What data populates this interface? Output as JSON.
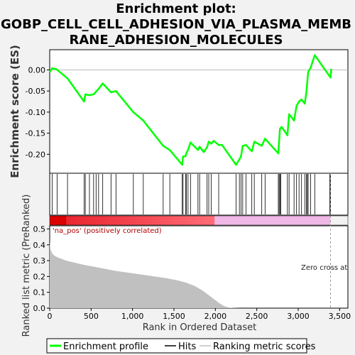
{
  "chart_data": {
    "type": "line",
    "title": [
      "Enrichment plot:",
      "GOBP_CELL_CELL_ADHESION_VIA_PLASMA_MEMB",
      "RANE_ADHESION_MOLECULES"
    ],
    "top_panel": {
      "ylabel": "Enrichment score (ES)",
      "ylim": [
        -0.245,
        0.048
      ],
      "yticks": [
        0.0,
        -0.05,
        -0.1,
        -0.15,
        -0.2
      ],
      "ytick_labels": [
        "0.00",
        "-0.05",
        "-0.10",
        "-0.15",
        "-0.20"
      ],
      "series": [
        {
          "name": "Enrichment profile",
          "color": "#00ff00",
          "x": [
            0,
            30,
            80,
            215,
            415,
            430,
            480,
            530,
            590,
            640,
            740,
            800,
            1010,
            1130,
            1370,
            1450,
            1600,
            1610,
            1640,
            1650,
            1670,
            1700,
            1790,
            1810,
            1860,
            1900,
            1920,
            1950,
            1980,
            2040,
            2080,
            2250,
            2290,
            2310,
            2330,
            2370,
            2440,
            2470,
            2560,
            2600,
            2760,
            2780,
            2800,
            2870,
            2890,
            2950,
            2980,
            3010,
            3040,
            3080,
            3100,
            3120,
            3150,
            3200,
            3390,
            3400
          ],
          "y": [
            -0.005,
            0.004,
            0.002,
            -0.02,
            -0.075,
            -0.058,
            -0.06,
            -0.058,
            -0.045,
            -0.032,
            -0.053,
            -0.05,
            -0.1,
            -0.12,
            -0.18,
            -0.19,
            -0.225,
            -0.205,
            -0.205,
            -0.197,
            -0.19,
            -0.172,
            -0.19,
            -0.182,
            -0.195,
            -0.183,
            -0.17,
            -0.175,
            -0.168,
            -0.178,
            -0.178,
            -0.225,
            -0.212,
            -0.205,
            -0.18,
            -0.178,
            -0.193,
            -0.17,
            -0.18,
            -0.163,
            -0.198,
            -0.14,
            -0.135,
            -0.155,
            -0.105,
            -0.12,
            -0.085,
            -0.075,
            -0.07,
            -0.08,
            -0.05,
            -0.005,
            0.005,
            0.035,
            -0.018,
            0.003
          ]
        }
      ]
    },
    "hits_panel": {
      "label": "Hits",
      "positions": [
        30,
        90,
        215,
        415,
        430,
        480,
        530,
        560,
        590,
        640,
        740,
        800,
        1010,
        1130,
        1370,
        1450,
        1600,
        1610,
        1640,
        1650,
        1670,
        1700,
        1790,
        1810,
        1900,
        1920,
        1950,
        2040,
        2250,
        2290,
        2310,
        2330,
        2370,
        2440,
        2470,
        2560,
        2600,
        2760,
        2770,
        2780,
        2790,
        2870,
        2890,
        2950,
        2980,
        3010,
        3040,
        3080,
        3100,
        3110,
        3120,
        3150,
        3200,
        3380,
        3390
      ]
    },
    "color_bar": {
      "positive_color": "#e8000a",
      "negative_color": "#f0b8e6",
      "split_rank": 1990,
      "annotation_positive": "'na_pos' (positively correlated)"
    },
    "bottom_panel": {
      "ylabel": "Ranked list metric (PreRanked)",
      "xlabel": "Rank in Ordered Dataset",
      "ylim": [
        0,
        0.52
      ],
      "yticks": [
        0.0,
        0.1,
        0.2,
        0.3,
        0.4,
        0.5
      ],
      "ytick_labels": [
        "0.0",
        "0.1",
        "0.2",
        "0.3",
        "0.4",
        "0.5"
      ],
      "xlim": [
        0,
        3600
      ],
      "xticks": [
        0,
        500,
        1000,
        1500,
        2000,
        2500,
        3000,
        3500
      ],
      "xtick_labels": [
        "0",
        "500",
        "1,000",
        "1,500",
        "2,000",
        "2,500",
        "3,000",
        "3,500"
      ],
      "series": [
        {
          "name": "Ranking metric scores",
          "color": "#c0c0c0",
          "x": [
            0,
            10,
            30,
            60,
            100,
            200,
            400,
            600,
            800,
            1000,
            1200,
            1400,
            1550,
            1650,
            1750,
            1850,
            1950,
            2050,
            2100,
            2150,
            2200,
            2300,
            3400
          ],
          "y": [
            0.42,
            0.37,
            0.345,
            0.33,
            0.32,
            0.3,
            0.275,
            0.255,
            0.235,
            0.22,
            0.205,
            0.19,
            0.175,
            0.16,
            0.14,
            0.11,
            0.07,
            0.03,
            0.015,
            0.006,
            0.002,
            0.0,
            0.0
          ]
        }
      ],
      "zero_cross_label": "Zero cross at",
      "zero_cross_rank": 3390
    },
    "legend": {
      "entries": [
        {
          "label": "Enrichment profile",
          "color": "#00ff00"
        },
        {
          "label": "Hits",
          "color": "#000000"
        },
        {
          "label": "Ranking metric scores",
          "color": "#c0c0c0"
        }
      ],
      "placement": "bottom"
    }
  }
}
